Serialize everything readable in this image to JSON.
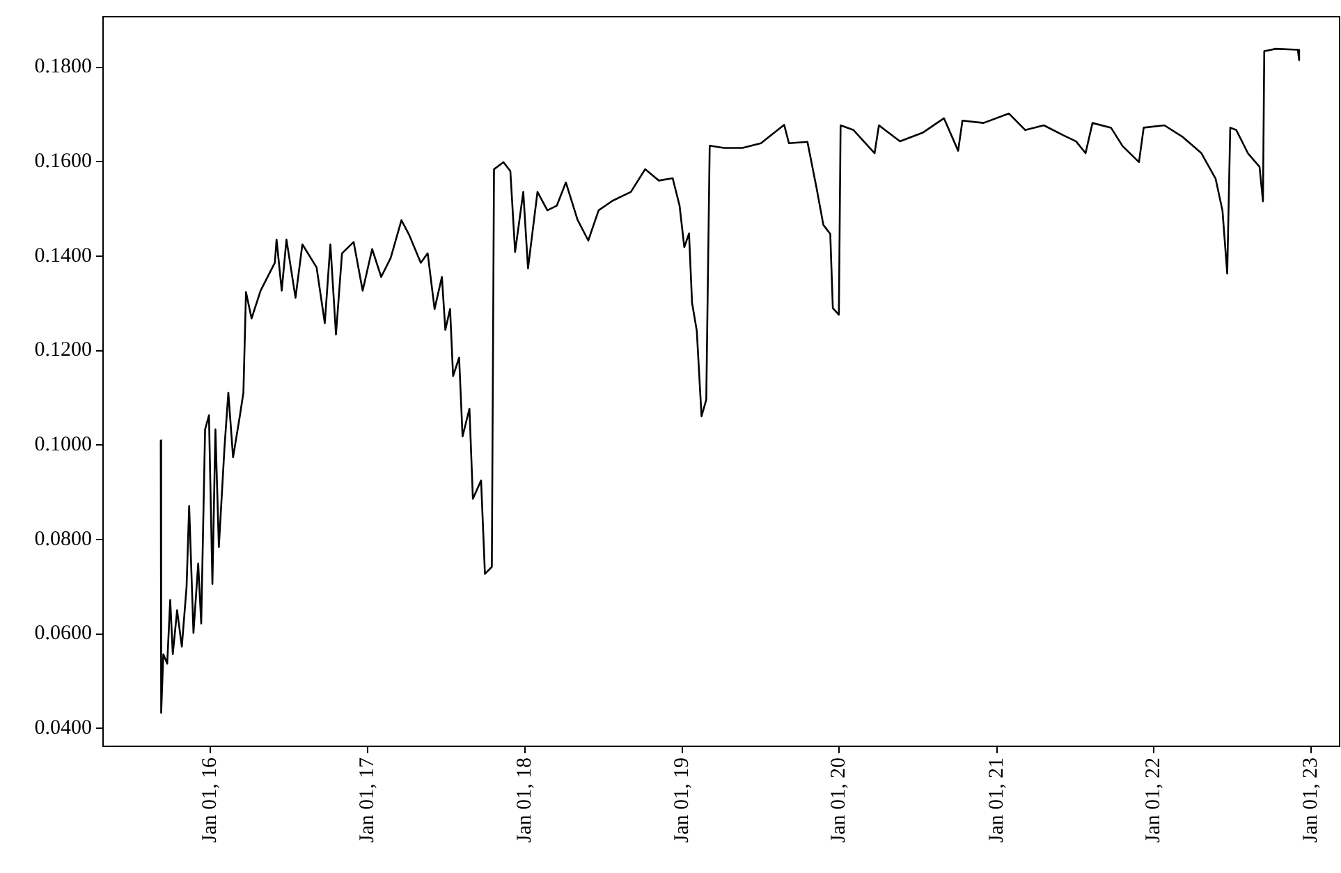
{
  "chart_data": {
    "type": "line",
    "x": [
      "2015-09-08",
      "2015-09-09",
      "2015-09-14",
      "2015-09-23",
      "2015-09-30",
      "2015-10-06",
      "2015-10-16",
      "2015-10-27",
      "2015-11-07",
      "2015-11-13",
      "2015-11-23",
      "2015-12-04",
      "2015-12-11",
      "2015-12-20",
      "2015-12-29",
      "2016-01-06",
      "2016-01-13",
      "2016-01-21",
      "2016-02-03",
      "2016-02-12",
      "2016-02-23",
      "2016-03-10",
      "2016-03-18",
      "2016-03-24",
      "2016-04-06",
      "2016-04-27",
      "2016-05-30",
      "2016-06-03",
      "2016-06-15",
      "2016-06-26",
      "2016-07-17",
      "2016-08-02",
      "2016-09-04",
      "2016-09-23",
      "2016-10-06",
      "2016-10-19",
      "2016-11-02",
      "2016-11-29",
      "2016-12-20",
      "2017-01-11",
      "2017-02-01",
      "2017-02-23",
      "2017-03-20",
      "2017-04-07",
      "2017-05-04",
      "2017-05-20",
      "2017-06-05",
      "2017-06-22",
      "2017-06-30",
      "2017-07-11",
      "2017-07-18",
      "2017-08-01",
      "2017-08-09",
      "2017-08-25",
      "2017-09-02",
      "2017-09-21",
      "2017-09-30",
      "2017-10-16",
      "2017-10-21",
      "2017-11-12",
      "2017-11-28",
      "2017-12-09",
      "2017-12-28",
      "2018-01-08",
      "2018-01-30",
      "2018-02-22",
      "2018-03-16",
      "2018-04-06",
      "2018-05-03",
      "2018-05-28",
      "2018-06-21",
      "2018-07-23",
      "2018-09-04",
      "2018-10-07",
      "2018-11-08",
      "2018-12-10",
      "2018-12-26",
      "2019-01-06",
      "2019-01-17",
      "2019-01-24",
      "2019-02-04",
      "2019-02-15",
      "2019-02-26",
      "2019-03-06",
      "2019-04-08",
      "2019-05-21",
      "2019-07-03",
      "2019-08-26",
      "2019-09-06",
      "2019-10-19",
      "2019-11-09",
      "2019-11-25",
      "2019-12-11",
      "2019-12-17",
      "2019-12-31",
      "2020-01-04",
      "2020-02-03",
      "2020-03-23",
      "2020-04-02",
      "2020-05-21",
      "2020-07-14",
      "2020-08-31",
      "2020-10-03",
      "2020-10-13",
      "2020-12-01",
      "2021-01-29",
      "2021-03-08",
      "2021-04-20",
      "2021-06-02",
      "2021-07-04",
      "2021-07-26",
      "2021-08-11",
      "2021-09-23",
      "2021-10-20",
      "2021-11-27",
      "2021-12-08",
      "2022-01-25",
      "2022-03-09",
      "2022-04-21",
      "2022-05-24",
      "2022-06-09",
      "2022-06-20",
      "2022-06-27",
      "2022-07-11",
      "2022-08-07",
      "2022-09-03",
      "2022-09-11",
      "2022-09-14",
      "2022-10-11",
      "2022-12-01",
      "2022-12-04"
    ],
    "series": [
      {
        "color": "#000000",
        "values": [
          0.101,
          0.0433,
          0.0557,
          0.0537,
          0.0672,
          0.0557,
          0.065,
          0.0573,
          0.07,
          0.0871,
          0.0602,
          0.0749,
          0.0622,
          0.1033,
          0.1063,
          0.0706,
          0.1033,
          0.0784,
          0.0994,
          0.1111,
          0.0974,
          0.1063,
          0.1111,
          0.1324,
          0.1268,
          0.1327,
          0.1386,
          0.1435,
          0.1327,
          0.1435,
          0.1312,
          0.1425,
          0.1376,
          0.1258,
          0.1425,
          0.1234,
          0.1406,
          0.143,
          0.1327,
          0.1415,
          0.1356,
          0.1396,
          0.1476,
          0.1445,
          0.1386,
          0.1406,
          0.1288,
          0.1356,
          0.1244,
          0.1288,
          0.1146,
          0.1185,
          0.1018,
          0.1077,
          0.0886,
          0.0925,
          0.0727,
          0.0742,
          0.1584,
          0.1599,
          0.158,
          0.1409,
          0.1536,
          0.1374,
          0.1536,
          0.1497,
          0.1507,
          0.1556,
          0.1477,
          0.1433,
          0.1497,
          0.1517,
          0.1536,
          0.1584,
          0.156,
          0.1565,
          0.1507,
          0.1419,
          0.1448,
          0.1301,
          0.1242,
          0.1061,
          0.1096,
          0.1634,
          0.1629,
          0.1629,
          0.1639,
          0.1678,
          0.1639,
          0.1642,
          0.1545,
          0.1466,
          0.1447,
          0.129,
          0.1276,
          0.1677,
          0.1667,
          0.1618,
          0.1677,
          0.1643,
          0.1662,
          0.1692,
          0.1623,
          0.1687,
          0.1682,
          0.1702,
          0.1667,
          0.1677,
          0.1657,
          0.1643,
          0.1618,
          0.1682,
          0.1672,
          0.1633,
          0.1599,
          0.1672,
          0.1677,
          0.1652,
          0.1618,
          0.1564,
          0.1496,
          0.1363,
          0.1672,
          0.1667,
          0.1618,
          0.1589,
          0.1516,
          0.1834,
          0.1839,
          0.1837,
          0.1815
        ]
      }
    ],
    "xlim": [
      "2015-04-27",
      "2023-03-08"
    ],
    "ylim": [
      0.0362,
      0.1907
    ],
    "xticks": [
      {
        "value": "2016-01-01",
        "label": "Jan 01, 16"
      },
      {
        "value": "2017-01-01",
        "label": "Jan 01, 17"
      },
      {
        "value": "2018-01-01",
        "label": "Jan 01, 18"
      },
      {
        "value": "2019-01-01",
        "label": "Jan 01, 19"
      },
      {
        "value": "2020-01-01",
        "label": "Jan 01, 20"
      },
      {
        "value": "2021-01-01",
        "label": "Jan 01, 21"
      },
      {
        "value": "2022-01-01",
        "label": "Jan 01, 22"
      },
      {
        "value": "2023-01-01",
        "label": "Jan 01, 23"
      }
    ],
    "yticks": [
      {
        "value": 0.04,
        "label": "0.0400"
      },
      {
        "value": 0.06,
        "label": "0.0600"
      },
      {
        "value": 0.08,
        "label": "0.0800"
      },
      {
        "value": 0.1,
        "label": "0.1000"
      },
      {
        "value": 0.12,
        "label": "0.1200"
      },
      {
        "value": 0.14,
        "label": "0.1400"
      },
      {
        "value": 0.16,
        "label": "0.1600"
      },
      {
        "value": 0.18,
        "label": "0.1800"
      }
    ],
    "grid": false,
    "legend": false,
    "marker": "none",
    "line_style": "solid"
  }
}
